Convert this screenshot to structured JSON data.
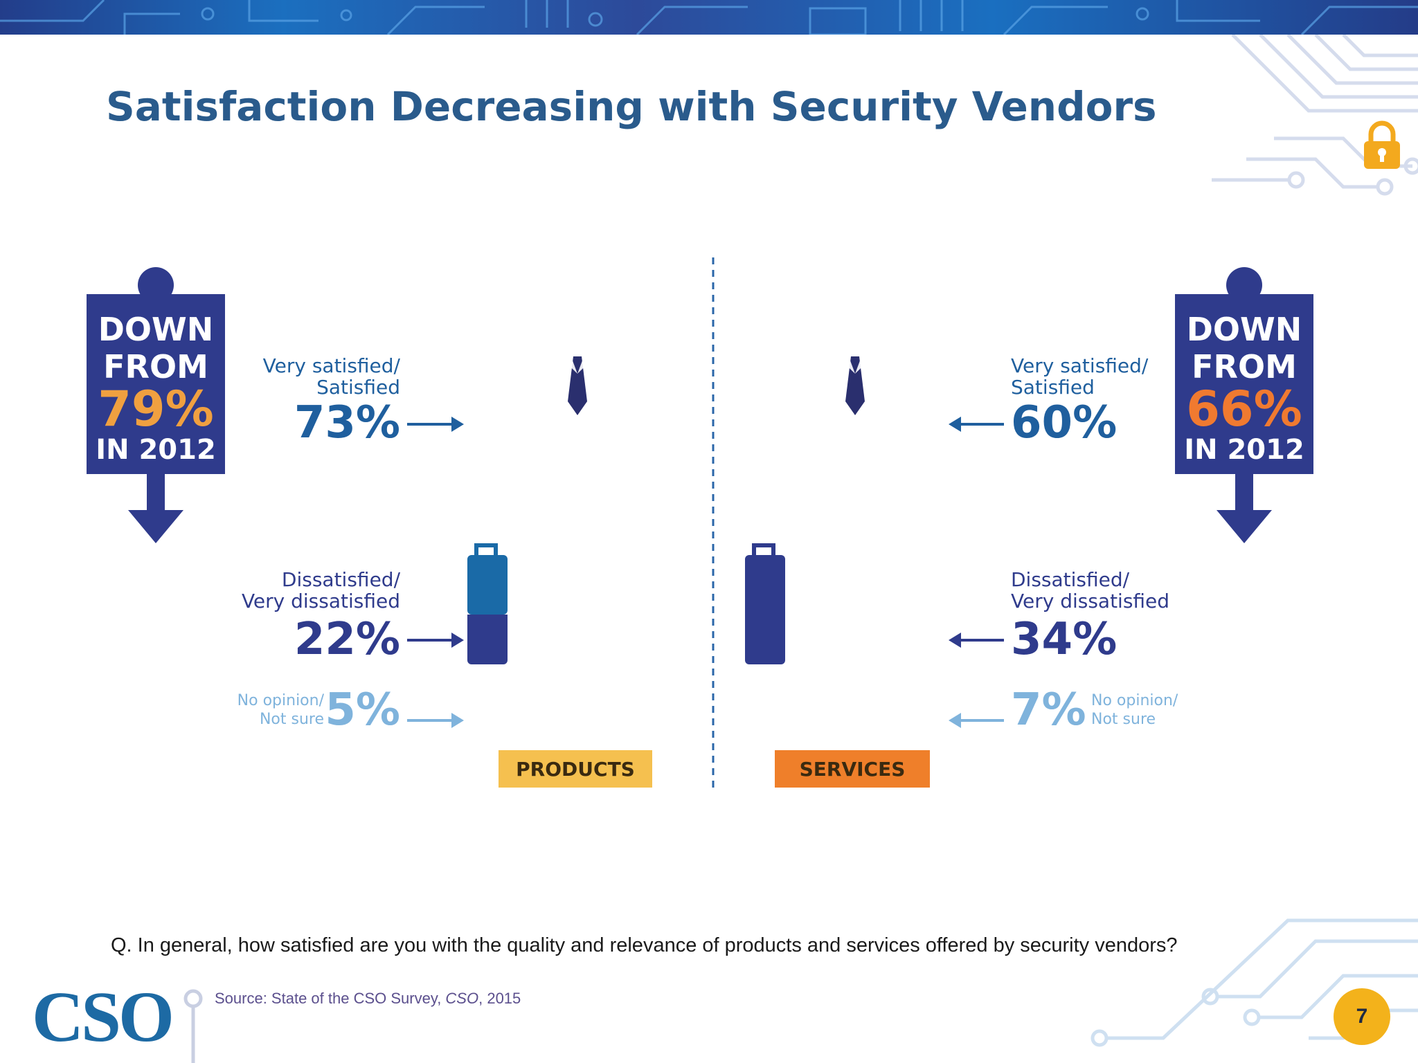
{
  "slide": {
    "title": "Satisfaction Decreasing with Security Vendors",
    "question": "Q. In general, how satisfied are you with the quality and relevance of products and services offered by security vendors?",
    "source_prefix": "Source: State of the CSO Survey, ",
    "source_publication": "CSO",
    "source_suffix": ", 2015",
    "logo": "CSO",
    "page_number": "7",
    "icons": [
      "circuit-pattern",
      "lock-icon",
      "person-figure-icon",
      "briefcase-icon",
      "arrow-right-icon",
      "arrow-left-icon",
      "down-arrow-icon"
    ]
  },
  "colors": {
    "title": "#2a5b8c",
    "satisfied_blue": "#1a6aa7",
    "dissatisfied_navy": "#2f3b8c",
    "no_opinion_light": "#7fb3dc",
    "products_label_bg": "#f5c04f",
    "services_label_bg": "#ef7f2a",
    "badge_navy": "#2f3b8c",
    "badge_orange": "#f0a040",
    "page_badge": "#f3b21b"
  },
  "chart_data": {
    "type": "pictograph",
    "categories": [
      "PRODUCTS",
      "SERVICES"
    ],
    "series": [
      {
        "name": "Very satisfied/ Satisfied",
        "values": [
          73,
          60
        ]
      },
      {
        "name": "Dissatisfied/ Very dissatisfied",
        "values": [
          22,
          34
        ]
      },
      {
        "name": "No opinion/ Not sure",
        "values": [
          5,
          7
        ]
      }
    ],
    "unit": "%",
    "comparison": {
      "prefix": "DOWN FROM",
      "values": [
        79,
        66
      ],
      "suffix": "IN 2012"
    },
    "labels": {
      "products": {
        "satisfied": [
          "Very satisfied/",
          "Satisfied"
        ],
        "satisfied_value": "73%",
        "dissatisfied": [
          "Dissatisfied/",
          "Very dissatisfied"
        ],
        "dissatisfied_value": "22%",
        "no_opinion": [
          "No opinion/",
          "Not sure"
        ],
        "no_opinion_value": "5%",
        "badge": [
          "DOWN",
          "FROM",
          "79%",
          "IN 2012"
        ]
      },
      "services": {
        "satisfied": [
          "Very satisfied/",
          "Satisfied"
        ],
        "satisfied_value": "60%",
        "dissatisfied": [
          "Dissatisfied/",
          "Very dissatisfied"
        ],
        "dissatisfied_value": "34%",
        "no_opinion": [
          "No opinion/",
          "Not sure"
        ],
        "no_opinion_value": "7%",
        "badge": [
          "DOWN",
          "FROM",
          "66%",
          "IN 2012"
        ]
      }
    }
  }
}
